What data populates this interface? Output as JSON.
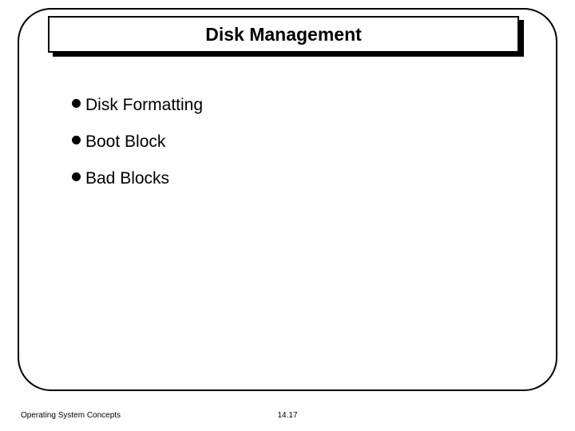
{
  "slide": {
    "title": "Disk Management",
    "bullets": [
      "Disk Formatting",
      "Boot Block",
      "Bad Blocks"
    ],
    "footer_left": "Operating System Concepts",
    "footer_center": "14.17"
  },
  "style": {
    "frame_border_color": "#000000",
    "frame_border_radius": 42,
    "title_font_size": 23,
    "bullet_font_size": 21,
    "footer_font_size": 10,
    "bullet_color": "#000000",
    "background": "#ffffff"
  }
}
